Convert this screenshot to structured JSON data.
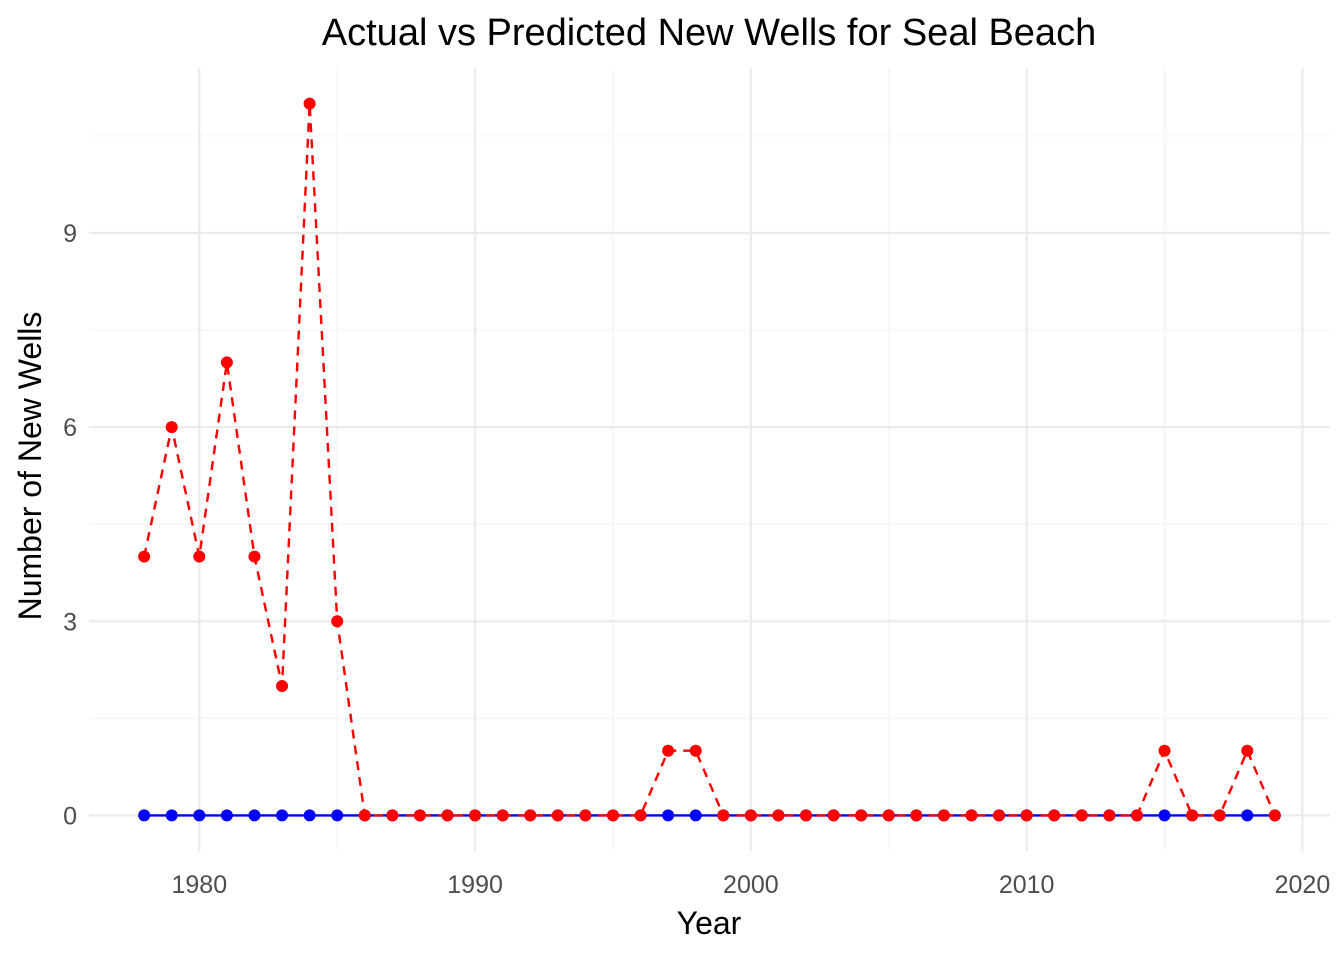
{
  "chart_data": {
    "type": "line",
    "title": "Actual vs Predicted New Wells for Seal Beach",
    "xlabel": "Year",
    "ylabel": "Number of New Wells",
    "xlim": [
      1976.0,
      2021.0
    ],
    "ylim": [
      -0.55,
      11.55
    ],
    "x_ticks": [
      1980,
      1990,
      2000,
      2010,
      2020
    ],
    "x_minor_ticks": [
      1975,
      1985,
      1995,
      2005,
      2015
    ],
    "y_ticks": [
      0,
      3,
      6,
      9
    ],
    "y_minor_ticks": [
      1.5,
      4.5,
      7.5,
      10.5
    ],
    "grid": true,
    "legend": "none",
    "x": [
      1978,
      1979,
      1980,
      1981,
      1982,
      1983,
      1984,
      1985,
      1986,
      1987,
      1988,
      1989,
      1990,
      1991,
      1992,
      1993,
      1994,
      1995,
      1996,
      1997,
      1998,
      1999,
      2000,
      2001,
      2002,
      2003,
      2004,
      2005,
      2006,
      2007,
      2008,
      2009,
      2010,
      2011,
      2012,
      2013,
      2014,
      2015,
      2016,
      2017,
      2018,
      2019
    ],
    "series": [
      {
        "color": "#0000ff",
        "line_style": "solid",
        "values": [
          0,
          0,
          0,
          0,
          0,
          0,
          0,
          0,
          0,
          0,
          0,
          0,
          0,
          0,
          0,
          0,
          0,
          0,
          0,
          0,
          0,
          0,
          0,
          0,
          0,
          0,
          0,
          0,
          0,
          0,
          0,
          0,
          0,
          0,
          0,
          0,
          0,
          0,
          0,
          0,
          0,
          0
        ]
      },
      {
        "color": "#ff0000",
        "line_style": "dashed",
        "values": [
          4,
          6,
          4,
          7,
          4,
          2,
          11,
          3,
          0,
          0,
          0,
          0,
          0,
          0,
          0,
          0,
          0,
          0,
          0,
          1,
          1,
          0,
          0,
          0,
          0,
          0,
          0,
          0,
          0,
          0,
          0,
          0,
          0,
          0,
          0,
          0,
          0,
          1,
          0,
          0,
          1,
          0
        ]
      }
    ]
  }
}
